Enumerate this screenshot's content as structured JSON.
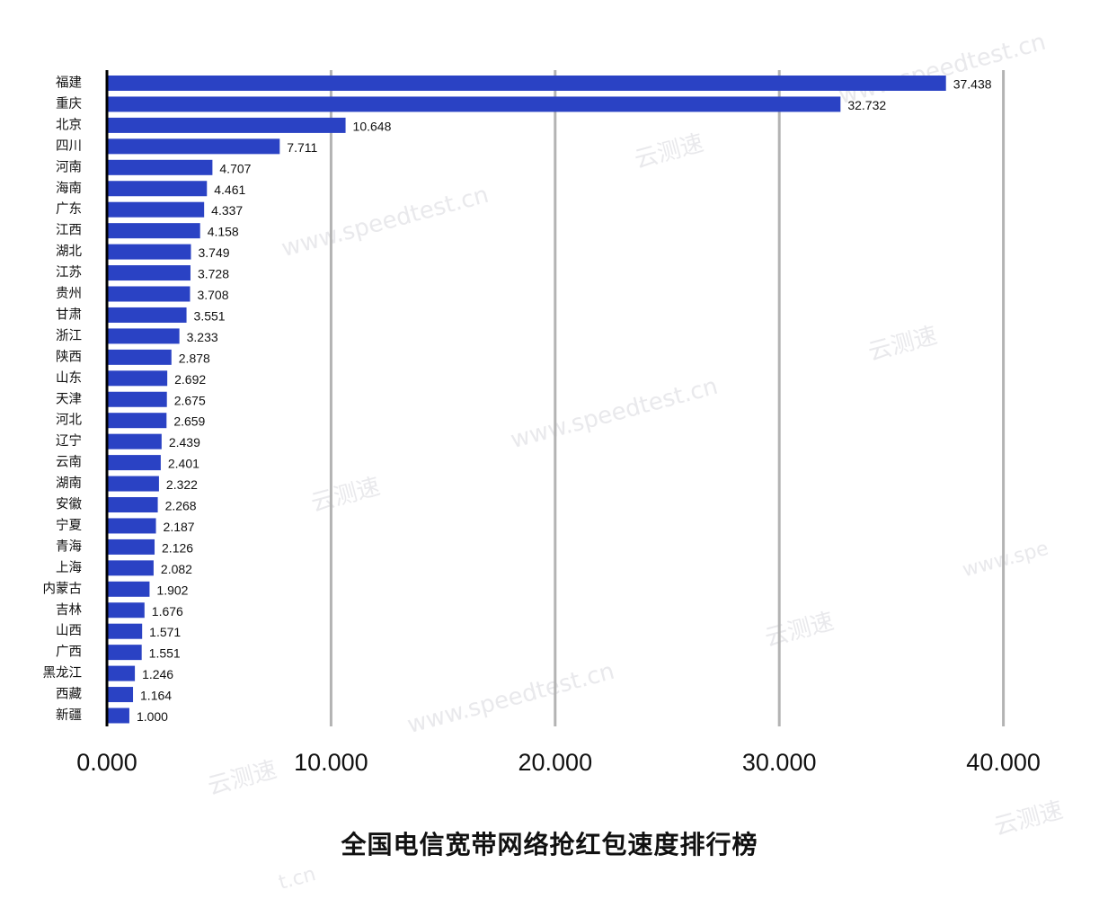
{
  "watermarks": {
    "site": "www.speedtest.cn",
    "brand": "云测速",
    "fragment_a": "t.cn",
    "fragment_b": "www.spe"
  },
  "chart_data": {
    "type": "bar",
    "orientation": "horizontal",
    "title": "全国电信宽带网络抢红包速度排行榜",
    "xlabel": "",
    "ylabel": "",
    "xlim": [
      0,
      40
    ],
    "x_ticks": [
      0,
      10,
      20,
      30,
      40
    ],
    "x_tick_labels": [
      "0.000",
      "10.000",
      "20.000",
      "30.000",
      "40.000"
    ],
    "grid": "vertical",
    "bar_color": "#2a42c4",
    "grid_color": "#b3b3b3",
    "categories": [
      "福建",
      "重庆",
      "北京",
      "四川",
      "河南",
      "海南",
      "广东",
      "江西",
      "湖北",
      "江苏",
      "贵州",
      "甘肃",
      "浙江",
      "陕西",
      "山东",
      "天津",
      "河北",
      "辽宁",
      "云南",
      "湖南",
      "安徽",
      "宁夏",
      "青海",
      "上海",
      "内蒙古",
      "吉林",
      "山西",
      "广西",
      "黑龙江",
      "西藏",
      "新疆"
    ],
    "values": [
      37.438,
      32.732,
      10.648,
      7.711,
      4.707,
      4.461,
      4.337,
      4.158,
      3.749,
      3.728,
      3.708,
      3.551,
      3.233,
      2.878,
      2.692,
      2.675,
      2.659,
      2.439,
      2.401,
      2.322,
      2.268,
      2.187,
      2.126,
      2.082,
      1.902,
      1.676,
      1.571,
      1.551,
      1.246,
      1.164,
      1.0
    ],
    "value_labels": [
      "37.438",
      "32.732",
      "10.648",
      "7.711",
      "4.707",
      "4.461",
      "4.337",
      "4.158",
      "3.749",
      "3.728",
      "3.708",
      "3.551",
      "3.233",
      "2.878",
      "2.692",
      "2.675",
      "2.659",
      "2.439",
      "2.401",
      "2.322",
      "2.268",
      "2.187",
      "2.126",
      "2.082",
      "1.902",
      "1.676",
      "1.571",
      "1.551",
      "1.246",
      "1.164",
      "1.000"
    ]
  }
}
